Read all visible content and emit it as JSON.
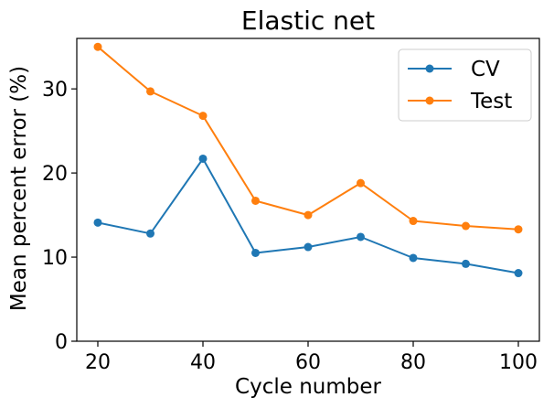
{
  "chart_data": {
    "type": "line",
    "title": "Elastic net",
    "xlabel": "Cycle number",
    "ylabel": "Mean percent error (%)",
    "x": [
      20,
      30,
      40,
      50,
      60,
      70,
      80,
      90,
      100
    ],
    "xlim": [
      16,
      104
    ],
    "ylim": [
      0,
      36
    ],
    "xticks": [
      20,
      40,
      60,
      80,
      100
    ],
    "yticks": [
      0,
      10,
      20,
      30
    ],
    "grid": false,
    "legend_position": "top-right",
    "series": [
      {
        "name": "CV",
        "color": "#1f77b4",
        "values": [
          14.1,
          12.8,
          21.7,
          10.5,
          11.2,
          12.4,
          9.9,
          9.2,
          8.1
        ]
      },
      {
        "name": "Test",
        "color": "#ff7f0e",
        "values": [
          35.0,
          29.7,
          26.8,
          16.7,
          15.0,
          18.8,
          14.3,
          13.7,
          13.3
        ]
      }
    ]
  }
}
